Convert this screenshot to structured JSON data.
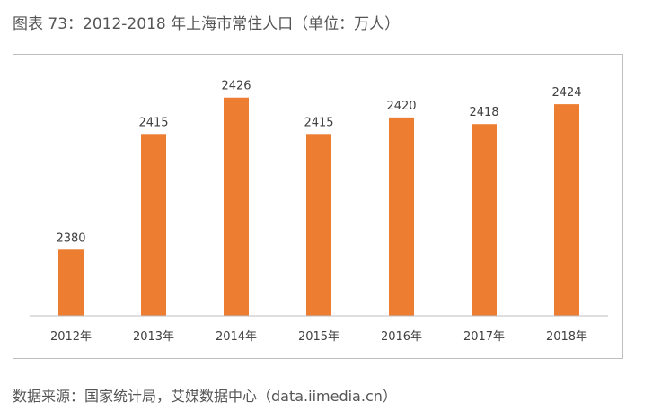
{
  "figure_title": "图表 73：2012-2018 年上海市常住人口（单位：万人）",
  "source_note": "数据来源：国家统计局，艾媒数据中心（data.iimedia.cn）",
  "colors": {
    "bar": "#ED7D31",
    "axis": "#bfbfbf",
    "text": "#404040"
  },
  "chart_data": {
    "type": "bar",
    "title": "",
    "xlabel": "",
    "ylabel": "",
    "categories": [
      "2012年",
      "2013年",
      "2014年",
      "2015年",
      "2016年",
      "2017年",
      "2018年"
    ],
    "values": [
      2380,
      2415,
      2426,
      2415,
      2420,
      2418,
      2424
    ],
    "data_labels": [
      "2380",
      "2415",
      "2426",
      "2415",
      "2420",
      "2418",
      "2424"
    ],
    "ylim": [
      2360,
      2430
    ],
    "grid": false,
    "legend": "none"
  }
}
